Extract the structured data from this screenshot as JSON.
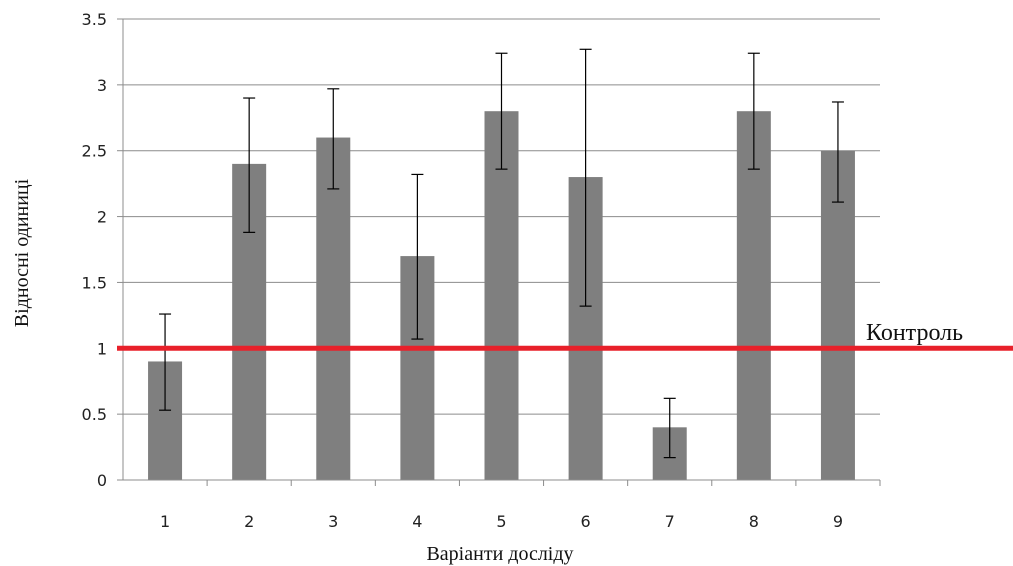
{
  "chart_data": {
    "type": "bar",
    "title": "",
    "xlabel": "Варіанти досліду",
    "ylabel": "Відносні одиниці",
    "categories": [
      "1",
      "2",
      "3",
      "4",
      "5",
      "6",
      "7",
      "8",
      "9"
    ],
    "series": [
      {
        "values": [
          0.9,
          2.4,
          2.6,
          1.7,
          2.8,
          2.3,
          0.4,
          2.8,
          2.5
        ],
        "error_low": [
          0.53,
          1.88,
          2.21,
          1.07,
          2.36,
          1.32,
          0.17,
          2.36,
          2.11
        ],
        "error_high": [
          1.26,
          2.9,
          2.97,
          2.32,
          3.24,
          3.27,
          0.62,
          3.24,
          2.87
        ],
        "color": "#7f7f7f"
      }
    ],
    "ylim": [
      0,
      3.5
    ],
    "yticks": [
      "0",
      "0.5",
      "1",
      "1.5",
      "2",
      "2.5",
      "3",
      "3.5"
    ],
    "grid": true,
    "reference_line": {
      "value": 1,
      "label": "Контроль",
      "color": "#e8202a"
    },
    "colors": {
      "grid": "#8c8c8c",
      "axis": "#8c8c8c",
      "errorbar": "#000000"
    }
  }
}
